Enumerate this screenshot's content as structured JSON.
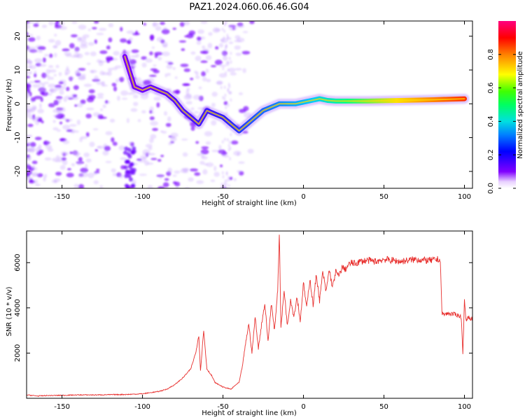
{
  "title": "PAZ1.2024.060.06.46.G04",
  "chart_data": [
    {
      "type": "heatmap",
      "xlabel": "Height of straight line (km)",
      "ylabel": "Frequency (Hz)",
      "xlim": [
        -172,
        105
      ],
      "ylim": [
        -25,
        24.5
      ],
      "xticks": [
        -150,
        -100,
        -50,
        0,
        50,
        100
      ],
      "yticks": [
        -20,
        -10,
        0,
        10,
        20
      ],
      "colorbar": {
        "label": "Normalized spectral amplitude",
        "range": [
          0,
          1
        ],
        "ticks": [
          "0.0",
          "0.2",
          "0.4",
          "0.6",
          "0.8"
        ],
        "colors": [
          "#ffffff",
          "#8000ff",
          "#0000ff",
          "#00c0ff",
          "#00ff80",
          "#40ff00",
          "#ffff00",
          "#ff8000",
          "#ff0000",
          "#ff0080"
        ]
      },
      "ridge": [
        {
          "x": -111,
          "y": 14
        },
        {
          "x": -105,
          "y": 5
        },
        {
          "x": -100,
          "y": 4
        },
        {
          "x": -95,
          "y": 5
        },
        {
          "x": -90,
          "y": 4
        },
        {
          "x": -85,
          "y": 3
        },
        {
          "x": -80,
          "y": 1
        },
        {
          "x": -75,
          "y": -2
        },
        {
          "x": -70,
          "y": -4
        },
        {
          "x": -65,
          "y": -6
        },
        {
          "x": -60,
          "y": -2
        },
        {
          "x": -55,
          "y": -3
        },
        {
          "x": -50,
          "y": -4
        },
        {
          "x": -45,
          "y": -6
        },
        {
          "x": -40,
          "y": -8
        },
        {
          "x": -35,
          "y": -6
        },
        {
          "x": -30,
          "y": -4
        },
        {
          "x": -25,
          "y": -2
        },
        {
          "x": -20,
          "y": -1
        },
        {
          "x": -15,
          "y": 0
        },
        {
          "x": -10,
          "y": 0
        },
        {
          "x": -5,
          "y": 0
        },
        {
          "x": 0,
          "y": 0.5
        },
        {
          "x": 5,
          "y": 1
        },
        {
          "x": 10,
          "y": 1.5
        },
        {
          "x": 15,
          "y": 1
        },
        {
          "x": 20,
          "y": 0.8
        },
        {
          "x": 40,
          "y": 0.8
        },
        {
          "x": 60,
          "y": 1
        },
        {
          "x": 80,
          "y": 1.2
        },
        {
          "x": 100,
          "y": 1.5
        }
      ]
    },
    {
      "type": "line",
      "xlabel": "Height of straight line (km)",
      "ylabel": "SNR (10 * v/v)",
      "xlim": [
        -172,
        105
      ],
      "ylim": [
        0,
        7400
      ],
      "xticks": [
        -150,
        -100,
        -50,
        0,
        50,
        100
      ],
      "yticks": [
        2000,
        4000,
        6000
      ],
      "color": "#e8302e",
      "series": [
        {
          "x": [
            -172,
            -165,
            -160,
            -150,
            -140,
            -130,
            -120,
            -110,
            -100,
            -90,
            -85,
            -80,
            -75,
            -70,
            -67,
            -65,
            -64,
            -62,
            -60,
            -57,
            -55,
            -50,
            -45,
            -42,
            -40,
            -38,
            -36,
            -34,
            -32,
            -30,
            -28,
            -26,
            -24,
            -22,
            -20,
            -18,
            -16,
            -15,
            -14,
            -12,
            -10,
            -8,
            -6,
            -4,
            -2,
            0,
            2,
            4,
            6,
            8,
            10,
            12,
            14,
            16,
            18,
            20,
            22,
            24,
            26,
            28,
            30,
            32,
            35,
            40,
            45,
            50,
            55,
            60,
            65,
            70,
            75,
            80,
            84,
            85,
            86,
            87,
            90,
            95,
            98,
            99,
            100,
            101,
            102,
            105
          ],
          "y": [
            150,
            100,
            120,
            130,
            150,
            150,
            160,
            170,
            200,
            300,
            400,
            600,
            900,
            1300,
            2000,
            2800,
            1200,
            3000,
            1300,
            1000,
            700,
            500,
            400,
            600,
            700,
            1400,
            2400,
            3300,
            2000,
            3600,
            2200,
            3300,
            4200,
            2500,
            4200,
            3000,
            4800,
            7400,
            3100,
            4800,
            3200,
            4400,
            3600,
            4500,
            3400,
            5100,
            4000,
            5300,
            4100,
            5500,
            4300,
            5600,
            4700,
            5700,
            4900,
            5600,
            5400,
            5800,
            5700,
            5900,
            6000,
            5950,
            6050,
            6100,
            6050,
            6150,
            6100,
            6050,
            6100,
            6150,
            6100,
            6100,
            6150,
            6100,
            3800,
            3700,
            3750,
            3700,
            3600,
            2000,
            4300,
            3400,
            3600,
            3500
          ]
        }
      ]
    }
  ]
}
